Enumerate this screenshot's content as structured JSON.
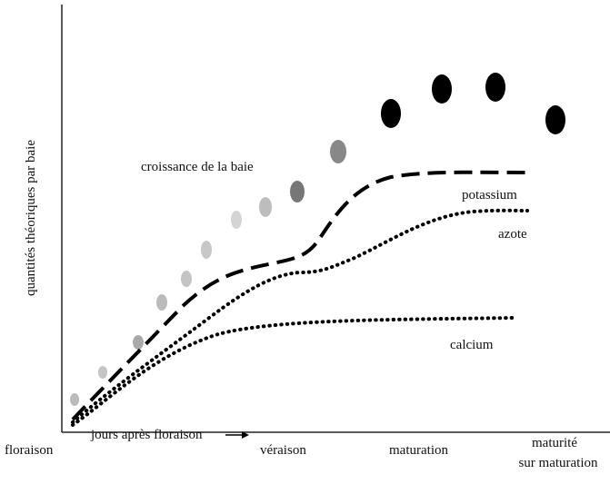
{
  "y_axis_label": "quantités théoriques par baie",
  "x_axis_label": "jours après floraison",
  "curves": {
    "berry": "croissance de la baie",
    "potassium": "potassium",
    "azote": "azote",
    "calcium": "calcium"
  },
  "stages": [
    "floraison",
    "véraison",
    "maturation",
    "maturité",
    "sur maturation"
  ]
}
